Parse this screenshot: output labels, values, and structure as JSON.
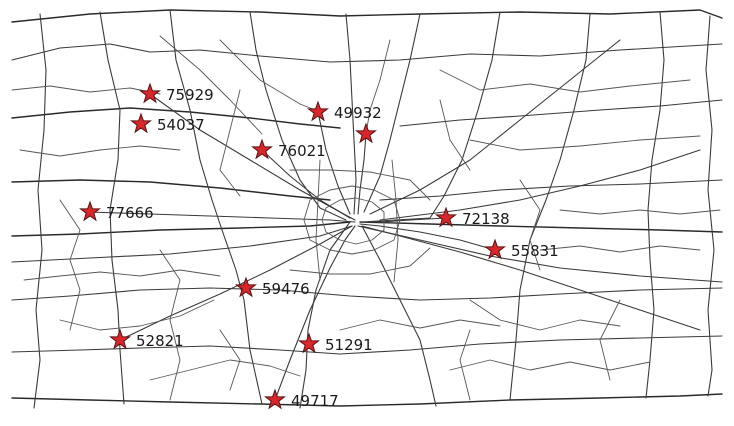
{
  "map": {
    "colors": {
      "background": "#ffffff",
      "road": "#3a3a3a",
      "marker_fill": "#d8262b",
      "marker_stroke": "#5a1010",
      "label": "#1a1a1a"
    },
    "marker_icon": "star-icon",
    "markers": [
      {
        "label": "75929"
      },
      {
        "label": "54037"
      },
      {
        "label": "49932"
      },
      {
        "label": ""
      },
      {
        "label": "76021"
      },
      {
        "label": "77666"
      },
      {
        "label": "72138"
      },
      {
        "label": "55831"
      },
      {
        "label": "59476"
      },
      {
        "label": "52821"
      },
      {
        "label": "51291"
      },
      {
        "label": "49717"
      }
    ]
  }
}
